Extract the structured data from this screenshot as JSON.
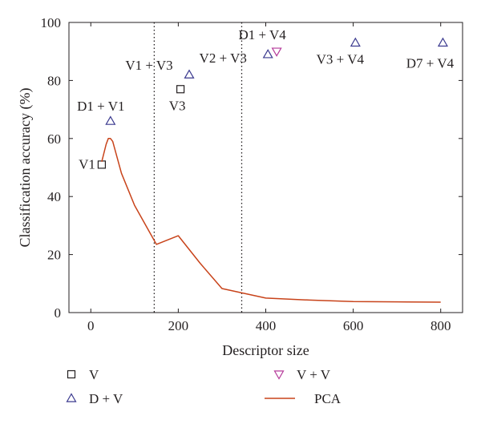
{
  "chart_data": {
    "type": "scatter",
    "title": "",
    "xlabel": "Descriptor size",
    "ylabel": "Classification accuracy (%)",
    "xlim": [
      -50,
      850
    ],
    "ylim": [
      0,
      100
    ],
    "xticks": [
      0,
      200,
      400,
      600,
      800
    ],
    "yticks": [
      0,
      20,
      40,
      60,
      80,
      100
    ],
    "vlines": [
      145,
      345
    ],
    "grid": false,
    "legend_position": "bottom",
    "colors": {
      "axis": "#231f20",
      "v": "#231f20",
      "d_plus_v": "#3b3a8f",
      "v_plus_v": "#b53a9a",
      "pca": "#c8431a"
    },
    "series": [
      {
        "name": "V",
        "kind": "scatter",
        "marker": "square",
        "points": [
          {
            "x": 25,
            "y": 51,
            "label": "V1"
          },
          {
            "x": 205,
            "y": 77,
            "label": "V3"
          }
        ]
      },
      {
        "name": "D + V",
        "kind": "scatter",
        "marker": "triangle-up",
        "points": [
          {
            "x": 45,
            "y": 66,
            "label": "D1 + V1"
          },
          {
            "x": 225,
            "y": 82,
            "label": "V1 + V3"
          },
          {
            "x": 405,
            "y": 89,
            "label": "V2 + V3"
          },
          {
            "x": 605,
            "y": 93,
            "label": "V3 + V4"
          },
          {
            "x": 805,
            "y": 93,
            "label": "D7 + V4"
          }
        ]
      },
      {
        "name": "V + V",
        "kind": "scatter",
        "marker": "triangle-down",
        "points": [
          {
            "x": 425,
            "y": 90,
            "label": "D1 + V4"
          }
        ]
      },
      {
        "name": "PCA",
        "kind": "line",
        "x": [
          25,
          35,
          40,
          45,
          50,
          70,
          100,
          150,
          200,
          250,
          300,
          400,
          500,
          600,
          700,
          800
        ],
        "y": [
          52,
          58,
          60,
          60,
          59,
          48,
          37,
          23.5,
          26.5,
          17,
          8.3,
          5,
          4.3,
          3.8,
          3.7,
          3.6
        ]
      }
    ]
  }
}
